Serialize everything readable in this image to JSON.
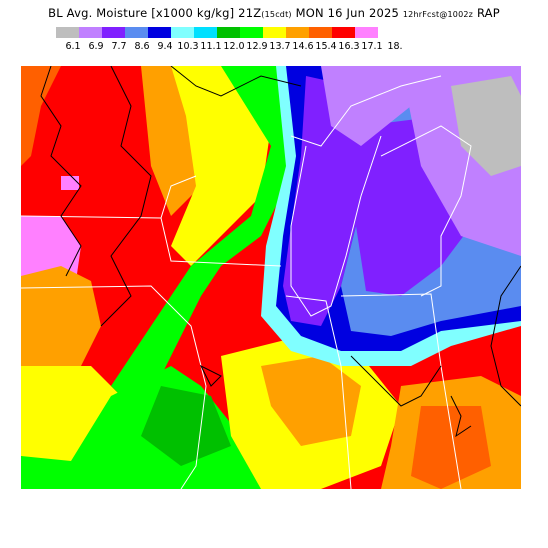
{
  "title": {
    "main": "BL Avg. Moisture [x1000 kg/kg] 21Z",
    "level": "(15cdt)",
    "date": "MON 16 Jun 2025",
    "run": "12hrFcst@1002z",
    "model": "RAP"
  },
  "legend": {
    "labels": [
      "6.1",
      "6.9",
      "7.7",
      "8.6",
      "9.4",
      "10.3",
      "11.1",
      "12.0",
      "12.9",
      "13.7",
      "14.6",
      "15.4",
      "16.3",
      "17.1",
      "18."
    ],
    "colors": [
      "#bebebe",
      "#c080ff",
      "#8020ff",
      "#5a8cf0",
      "#0000e0",
      "#80ffff",
      "#00e0ff",
      "#00c000",
      "#00ff00",
      "#ffff00",
      "#ffa000",
      "#ff6000",
      "#ff0000",
      "#ff80ff"
    ]
  },
  "map": {
    "regions": [
      {
        "name": "far-west-red",
        "value": 16.3
      },
      {
        "name": "west-orange",
        "value": 15.4
      },
      {
        "name": "yellow-band",
        "value": 14.6
      },
      {
        "name": "green-band",
        "value": 12.9
      },
      {
        "name": "lake-michigan-purple",
        "value": 7.7
      },
      {
        "name": "lower-michigan-blue",
        "value": 8.6
      },
      {
        "name": "northeast-gray",
        "value": 6.1
      },
      {
        "name": "southeast-orange",
        "value": 15.4
      }
    ]
  }
}
